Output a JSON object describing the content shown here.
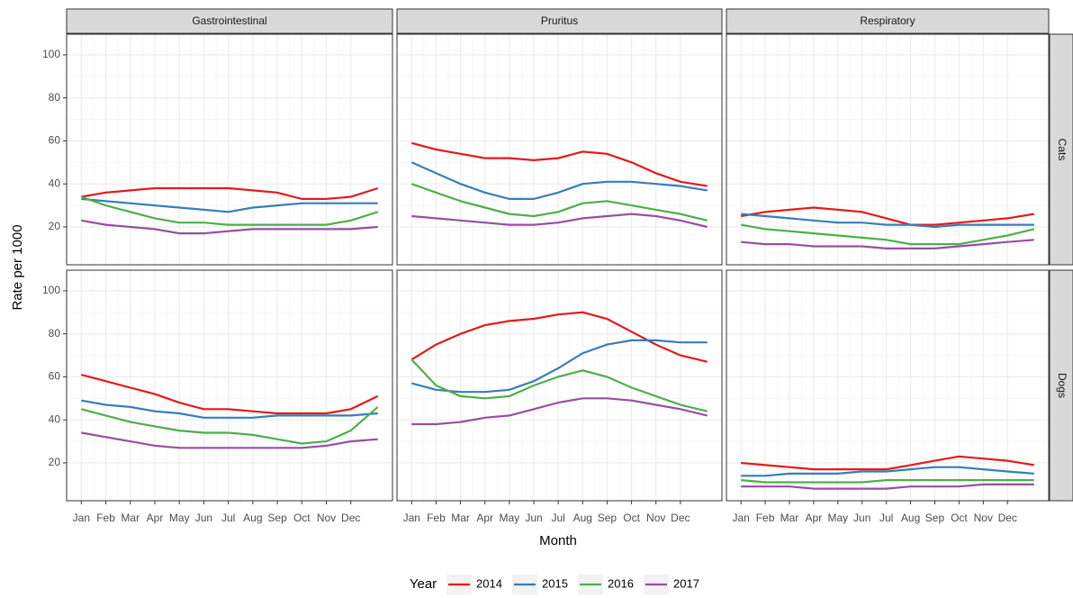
{
  "chart_data": {
    "type": "line",
    "x_label": "Month",
    "y_label": "Rate per 1000",
    "legend_title": "Year",
    "columns": [
      "Gastrointestinal",
      "Pruritus",
      "Respiratory"
    ],
    "rows": [
      "Cats",
      "Dogs"
    ],
    "x": [
      1,
      2,
      3,
      4,
      5,
      6,
      7,
      8,
      9,
      10,
      11,
      12,
      13.1
    ],
    "xlim": [
      0.4,
      13.7
    ],
    "xticks": [
      {
        "value": 1,
        "label": "Jan"
      },
      {
        "value": 2,
        "label": "Feb"
      },
      {
        "value": 3,
        "label": "Mar"
      },
      {
        "value": 4,
        "label": "Apr"
      },
      {
        "value": 5,
        "label": "May"
      },
      {
        "value": 6,
        "label": "Jun"
      },
      {
        "value": 7,
        "label": "Jul"
      },
      {
        "value": 8,
        "label": "Aug"
      },
      {
        "value": 9,
        "label": "Sep"
      },
      {
        "value": 10,
        "label": "Oct"
      },
      {
        "value": 11,
        "label": "Nov"
      },
      {
        "value": 12,
        "label": "Dec"
      }
    ],
    "ylim": [
      2.4,
      109.6
    ],
    "yticks": [
      20,
      40,
      60,
      80,
      100
    ],
    "grid": true,
    "series": [
      {
        "name": "2014",
        "color": "#e41a1c"
      },
      {
        "name": "2015",
        "color": "#377eb8"
      },
      {
        "name": "2016",
        "color": "#4daf4a"
      },
      {
        "name": "2017",
        "color": "#984ea3"
      }
    ],
    "panels": [
      {
        "values": [
          [
            34,
            36,
            37,
            38,
            38,
            38,
            38,
            37,
            36,
            33,
            33,
            34,
            38
          ],
          [
            33,
            32,
            31,
            30,
            29,
            28,
            27,
            29,
            30,
            31,
            31,
            31,
            31
          ],
          [
            34,
            30,
            27,
            24,
            22,
            22,
            21,
            21,
            21,
            21,
            21,
            23,
            27
          ],
          [
            23,
            21,
            20,
            19,
            17,
            17,
            18,
            19,
            19,
            19,
            19,
            19,
            20
          ]
        ]
      },
      {
        "values": [
          [
            59,
            56,
            54,
            52,
            52,
            51,
            52,
            55,
            54,
            50,
            45,
            41,
            39
          ],
          [
            50,
            45,
            40,
            36,
            33,
            33,
            36,
            40,
            41,
            41,
            40,
            39,
            37
          ],
          [
            40,
            36,
            32,
            29,
            26,
            25,
            27,
            31,
            32,
            30,
            28,
            26,
            23
          ],
          [
            25,
            24,
            23,
            22,
            21,
            21,
            22,
            24,
            25,
            26,
            25,
            23,
            20
          ]
        ]
      },
      {
        "values": [
          [
            25,
            27,
            28,
            29,
            28,
            27,
            24,
            21,
            21,
            22,
            23,
            24,
            26
          ],
          [
            26,
            25,
            24,
            23,
            22,
            22,
            21,
            21,
            20,
            21,
            21,
            21,
            21
          ],
          [
            21,
            19,
            18,
            17,
            16,
            15,
            14,
            12,
            12,
            12,
            14,
            16,
            19
          ],
          [
            13,
            12,
            12,
            11,
            11,
            11,
            10,
            10,
            10,
            11,
            12,
            13,
            14
          ]
        ]
      },
      {
        "values": [
          [
            61,
            58,
            55,
            52,
            48,
            45,
            45,
            44,
            43,
            43,
            43,
            45,
            51
          ],
          [
            49,
            47,
            46,
            44,
            43,
            41,
            41,
            41,
            42,
            42,
            42,
            42,
            43
          ],
          [
            45,
            42,
            39,
            37,
            35,
            34,
            34,
            33,
            31,
            29,
            30,
            35,
            46
          ],
          [
            34,
            32,
            30,
            28,
            27,
            27,
            27,
            27,
            27,
            27,
            28,
            30,
            31
          ]
        ]
      },
      {
        "values": [
          [
            68,
            75,
            80,
            84,
            86,
            87,
            89,
            90,
            87,
            81,
            75,
            70,
            67
          ],
          [
            57,
            54,
            53,
            53,
            54,
            58,
            64,
            71,
            75,
            77,
            77,
            76,
            76
          ],
          [
            68,
            56,
            51,
            50,
            51,
            56,
            60,
            63,
            60,
            55,
            51,
            47,
            44
          ],
          [
            38,
            38,
            39,
            41,
            42,
            45,
            48,
            50,
            50,
            49,
            47,
            45,
            42
          ]
        ]
      },
      {
        "values": [
          [
            20,
            19,
            18,
            17,
            17,
            17,
            17,
            19,
            21,
            23,
            22,
            21,
            19
          ],
          [
            14,
            14,
            15,
            15,
            15,
            16,
            16,
            17,
            18,
            18,
            17,
            16,
            15
          ],
          [
            12,
            11,
            11,
            11,
            11,
            11,
            12,
            12,
            12,
            12,
            12,
            12,
            12
          ],
          [
            9,
            9,
            9,
            8,
            8,
            8,
            8,
            9,
            9,
            9,
            10,
            10,
            10
          ]
        ]
      }
    ]
  }
}
